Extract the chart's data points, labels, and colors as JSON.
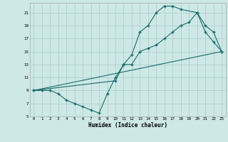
{
  "xlabel": "Humidex (Indice chaleur)",
  "bg_color": "#cde8e5",
  "grid_color": "#aaccca",
  "line_color": "#1a6b6b",
  "xlim": [
    -0.5,
    23.5
  ],
  "ylim": [
    5,
    22.5
  ],
  "xticks": [
    0,
    1,
    2,
    3,
    4,
    5,
    6,
    7,
    8,
    9,
    10,
    11,
    12,
    13,
    14,
    15,
    16,
    17,
    18,
    19,
    20,
    21,
    22,
    23
  ],
  "yticks": [
    5,
    7,
    9,
    11,
    13,
    15,
    17,
    19,
    21
  ],
  "line1_x": [
    0,
    1,
    2,
    3,
    4,
    5,
    6,
    7,
    8,
    9,
    10,
    11,
    12,
    13,
    14,
    15,
    16,
    17,
    18,
    19,
    20,
    21,
    22,
    23
  ],
  "line1_y": [
    9,
    9,
    9,
    8.5,
    7.5,
    7,
    6.5,
    6,
    5.5,
    8.5,
    11,
    13,
    13,
    15,
    15.5,
    16,
    17,
    18,
    19,
    19.5,
    21,
    19,
    18,
    15
  ],
  "line2_x": [
    0,
    10,
    11,
    12,
    13,
    14,
    15,
    16,
    17,
    18,
    20,
    21,
    22,
    23
  ],
  "line2_y": [
    9,
    10.5,
    13,
    14.5,
    18,
    19,
    21,
    22,
    22,
    21.5,
    21,
    18,
    16.5,
    15
  ],
  "line3_x": [
    0,
    23
  ],
  "line3_y": [
    9,
    15
  ]
}
